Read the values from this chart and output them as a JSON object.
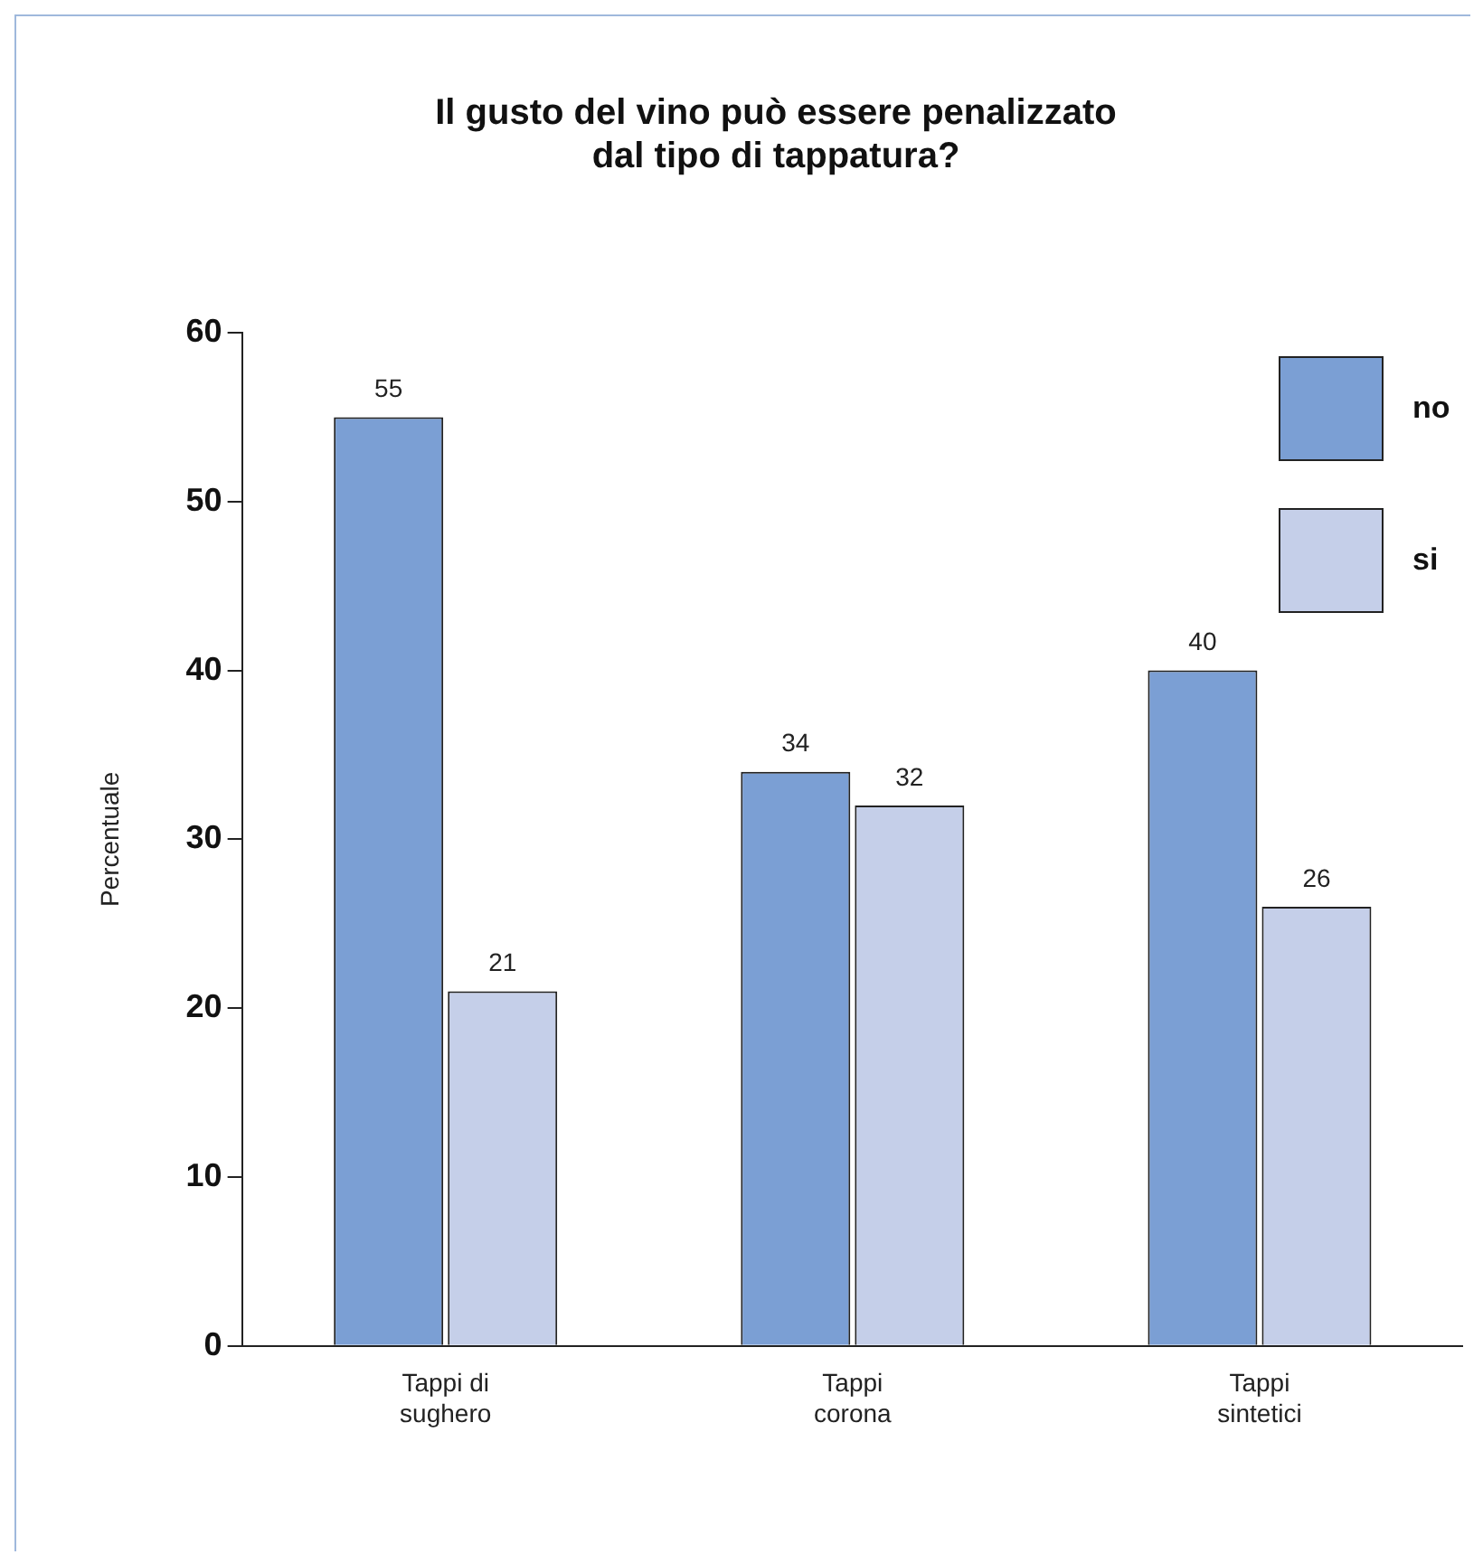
{
  "chart_data": {
    "type": "bar",
    "title": "Il gusto del vino può essere penalizzato dal tipo di tappatura?",
    "ylabel": "Percentuale",
    "categories": [
      "Tappi di sughero",
      "Tappi corona",
      "Tappi sintetici"
    ],
    "series": [
      {
        "name": "no",
        "color": "#7b9fd4",
        "values": [
          55,
          34,
          40
        ]
      },
      {
        "name": "si",
        "color": "#c5cfe9",
        "values": [
          21,
          32,
          26
        ]
      }
    ],
    "ylim": [
      0,
      60
    ],
    "yticks": [
      0,
      10,
      20,
      30,
      40,
      50,
      60
    ],
    "grid": false,
    "legend": "top right",
    "data_labels": true
  }
}
